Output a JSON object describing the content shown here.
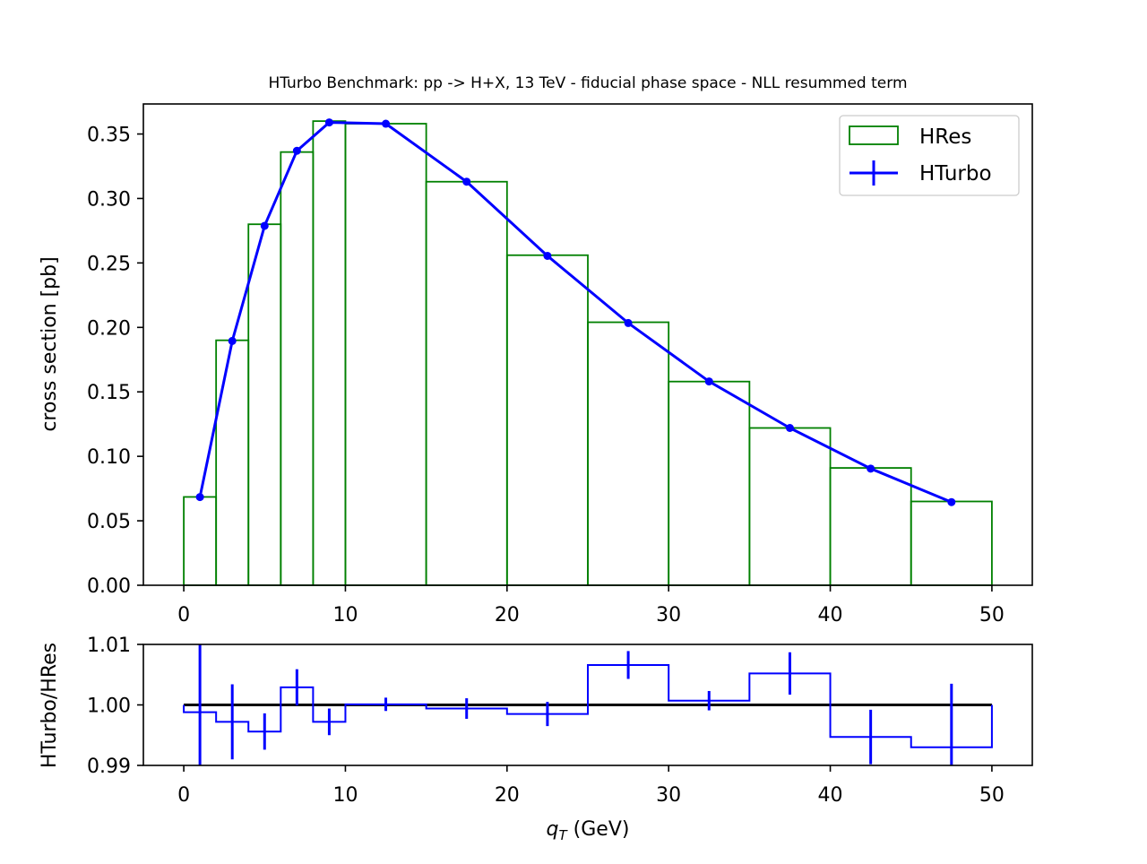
{
  "chart_data": [
    {
      "type": "line",
      "panel": "main",
      "title": "HTurbo Benchmark: pp -> H+X, 13 TeV - fiducial phase space - NLL resummed term",
      "xlabel": "",
      "ylabel": "cross section [pb]",
      "xlim": [
        -2.5,
        52.5
      ],
      "ylim": [
        0.0,
        0.3733
      ],
      "xticks": [
        "0",
        "10",
        "20",
        "30",
        "40",
        "50"
      ],
      "yticks": [
        "0.00",
        "0.05",
        "0.10",
        "0.15",
        "0.20",
        "0.25",
        "0.30",
        "0.35"
      ],
      "grid": false,
      "legend": "top-right",
      "series": [
        {
          "name": "HRes",
          "style": "step-histogram",
          "color": "#008000",
          "bin_edges": [
            0,
            2,
            4,
            6,
            8,
            10,
            15,
            20,
            25,
            30,
            35,
            40,
            45,
            50
          ],
          "values": [
            0.0685,
            0.19,
            0.28,
            0.336,
            0.36,
            0.358,
            0.313,
            0.256,
            0.204,
            0.158,
            0.122,
            0.091,
            0.065
          ]
        },
        {
          "name": "HTurbo",
          "style": "line-markers-errorbars",
          "color": "#0000ff",
          "x": [
            1,
            3,
            5,
            7,
            9,
            12.5,
            17.5,
            22.5,
            27.5,
            32.5,
            37.5,
            42.5,
            47.5
          ],
          "values": [
            0.0684,
            0.1895,
            0.2788,
            0.337,
            0.359,
            0.358,
            0.313,
            0.2555,
            0.2034,
            0.1581,
            0.122,
            0.0905,
            0.0645
          ]
        }
      ]
    },
    {
      "type": "line",
      "panel": "ratio",
      "xlabel": "q_T (GeV)",
      "ylabel": "HTurbo/HRes",
      "xlim": [
        -2.5,
        52.5
      ],
      "ylim": [
        0.99,
        1.01
      ],
      "xticks": [
        "0",
        "10",
        "20",
        "30",
        "40",
        "50"
      ],
      "yticks": [
        "0.99",
        "1.00",
        "1.01"
      ],
      "grid": false,
      "reference_line": 1.0,
      "series": [
        {
          "name": "HTurbo/HRes",
          "style": "step-histogram-errorbars",
          "color": "#0000ff",
          "bin_edges": [
            0,
            2,
            4,
            6,
            8,
            10,
            15,
            20,
            25,
            30,
            35,
            40,
            45,
            50
          ],
          "x": [
            1,
            3,
            5,
            7,
            9,
            12.5,
            17.5,
            22.5,
            27.5,
            32.5,
            37.5,
            42.5,
            47.5
          ],
          "values": [
            0.9988,
            0.9972,
            0.9956,
            1.0029,
            0.9972,
            1.0001,
            0.9994,
            0.9985,
            1.0066,
            1.0007,
            1.0052,
            0.9947,
            0.993
          ],
          "errors": [
            0.0115,
            0.0062,
            0.003,
            0.003,
            0.0022,
            0.0011,
            0.0017,
            0.002,
            0.0023,
            0.0016,
            0.0035,
            0.0045,
            0.0105
          ]
        }
      ]
    }
  ],
  "legend": {
    "hres_label": "HRes",
    "hturbo_label": "HTurbo"
  },
  "xlabel_parts": {
    "symbol": "q",
    "subscript": "T",
    "unit": " (GeV)"
  }
}
